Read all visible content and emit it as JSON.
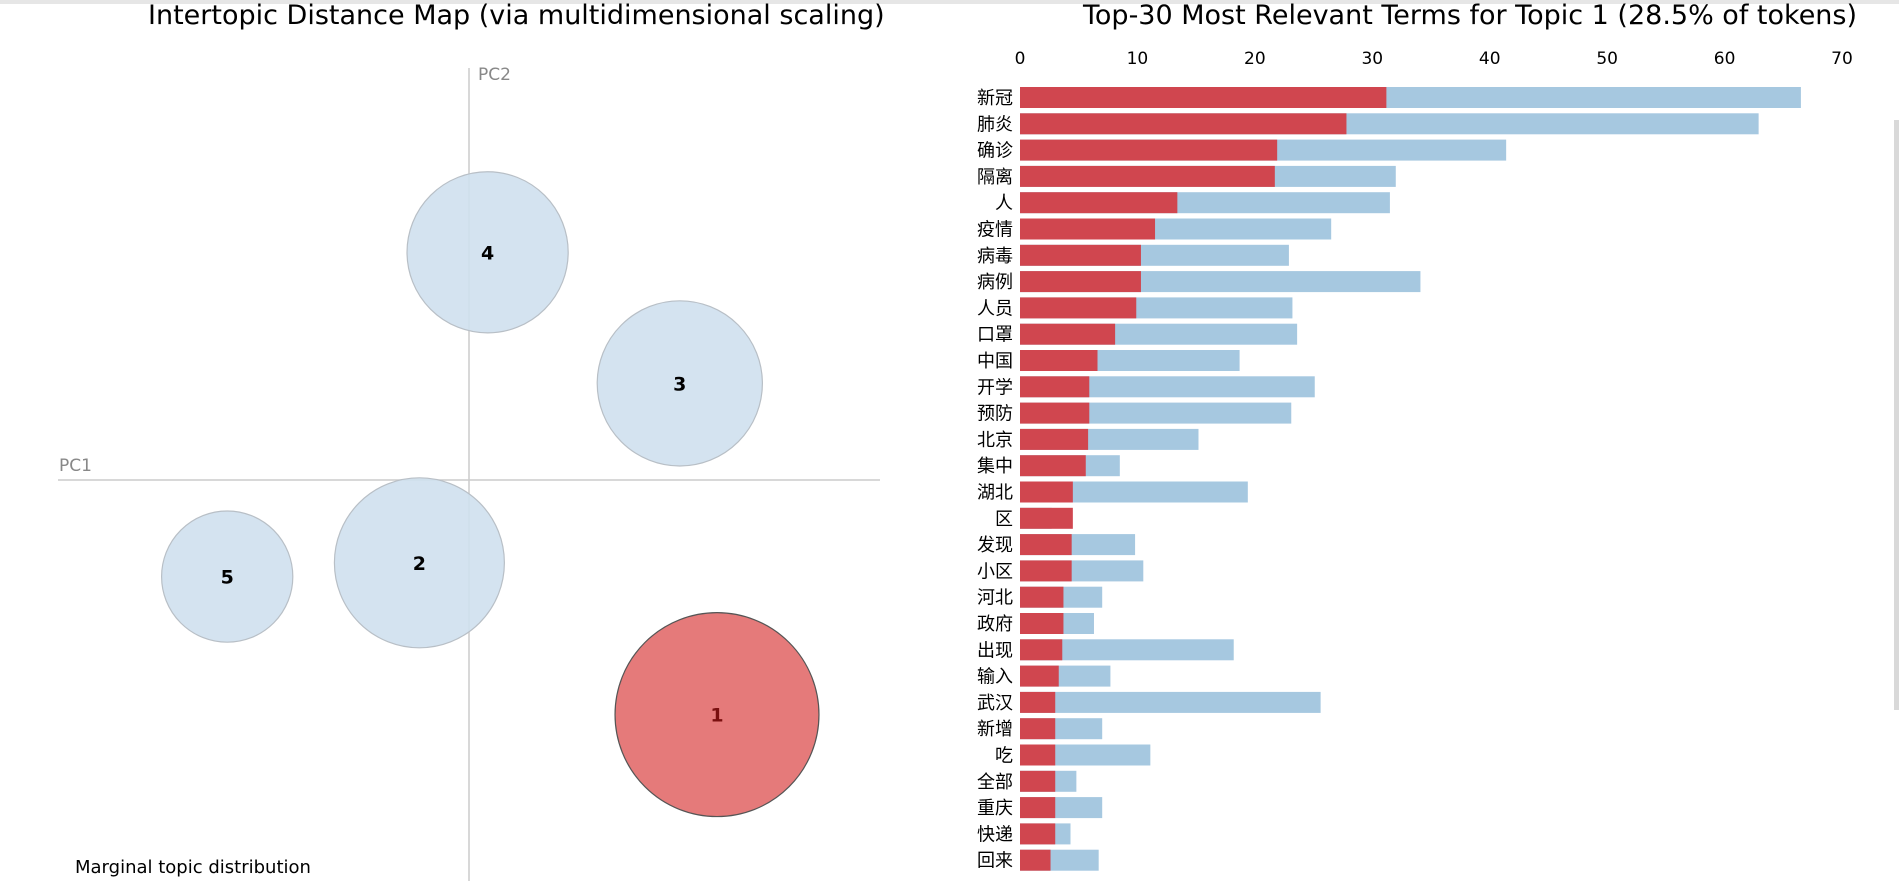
{
  "left_panel": {
    "title": "Intertopic Distance Map (via multidimensional scaling)",
    "pc1_label": "PC1",
    "pc2_label": "PC2",
    "marginal_label": "Marginal topic distribution"
  },
  "right_panel": {
    "title": "Top-30 Most Relevant Terms for Topic 1 (28.5% of tokens)"
  },
  "colors": {
    "selected_topic_fill": "#e57a7a",
    "topic_fill": "#cfe0ee",
    "topic_stroke": "#b8bfc6",
    "estimated_term_frequency": "#d0464f",
    "overall_term_frequency": "#a6c8e0",
    "axis_line": "#cccccc"
  },
  "chart_data": [
    {
      "type": "scatter",
      "title": "Intertopic Distance Map (via multidimensional scaling)",
      "xlabel": "PC1",
      "ylabel": "PC2",
      "selected_topic": "1",
      "topics": [
        {
          "label": "1",
          "pc1": 0.4,
          "pc2": -0.34,
          "size": 28.5
        },
        {
          "label": "2",
          "pc1": -0.08,
          "pc2": -0.12,
          "size": 19.8
        },
        {
          "label": "3",
          "pc1": 0.34,
          "pc2": 0.14,
          "size": 18.7
        },
        {
          "label": "4",
          "pc1": 0.03,
          "pc2": 0.33,
          "size": 17.8
        },
        {
          "label": "5",
          "pc1": -0.39,
          "pc2": -0.14,
          "size": 11.8
        }
      ]
    },
    {
      "type": "bar",
      "orientation": "horizontal",
      "title": "Top-30 Most Relevant Terms for Topic 1 (28.5% of tokens)",
      "xlim": [
        0,
        70
      ],
      "xticks": [
        "0",
        "10",
        "20",
        "30",
        "40",
        "50",
        "60",
        "70"
      ],
      "categories": [
        "新冠",
        "肺炎",
        "确诊",
        "隔离",
        "人",
        "疫情",
        "病毒",
        "病例",
        "人员",
        "口罩",
        "中国",
        "开学",
        "预防",
        "北京",
        "集中",
        "湖北",
        "区",
        "发现",
        "小区",
        "河北",
        "政府",
        "出现",
        "输入",
        "武汉",
        "新增",
        "吃",
        "全部",
        "重庆",
        "快递",
        "回来"
      ],
      "series": [
        {
          "role": "overall",
          "values": [
            66.5,
            62.9,
            41.4,
            32.0,
            31.5,
            26.5,
            22.9,
            34.1,
            23.2,
            23.6,
            18.7,
            25.1,
            23.1,
            15.2,
            8.5,
            19.4,
            2.7,
            9.8,
            10.5,
            7.0,
            6.3,
            18.2,
            7.7,
            25.6,
            7.0,
            11.1,
            4.8,
            7.0,
            4.3,
            6.7
          ]
        },
        {
          "role": "estimated",
          "values": [
            31.2,
            27.8,
            21.9,
            21.7,
            13.4,
            11.5,
            10.3,
            10.3,
            9.9,
            8.1,
            6.6,
            5.9,
            5.9,
            5.8,
            5.6,
            4.5,
            4.5,
            4.4,
            4.4,
            3.7,
            3.7,
            3.6,
            3.3,
            3.0,
            3.0,
            3.0,
            3.0,
            3.0,
            3.0,
            2.6
          ]
        }
      ]
    }
  ]
}
